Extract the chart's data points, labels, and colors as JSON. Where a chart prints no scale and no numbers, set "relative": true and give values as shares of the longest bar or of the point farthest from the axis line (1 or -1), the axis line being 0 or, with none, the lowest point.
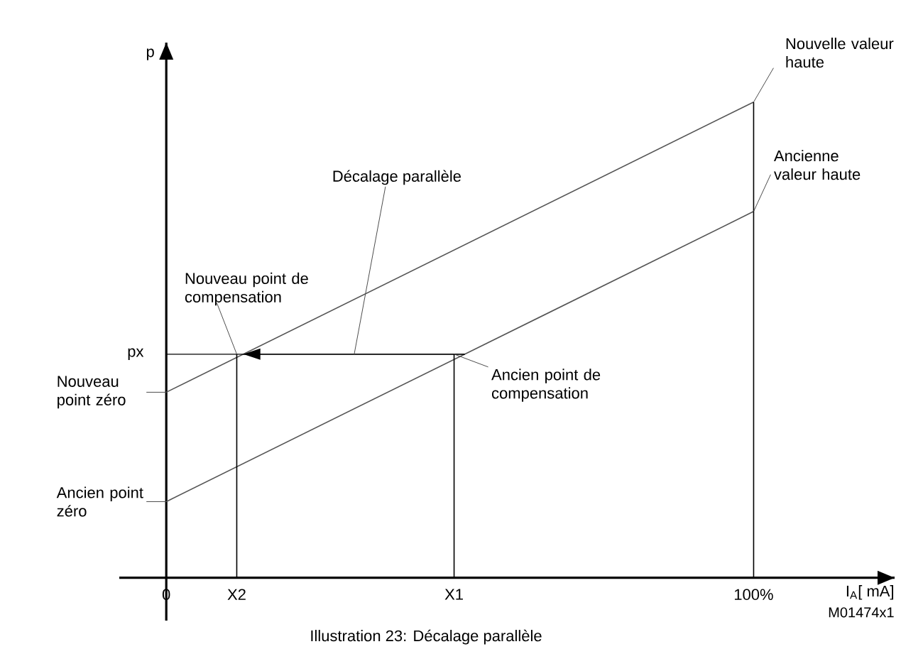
{
  "chart_data": {
    "type": "line",
    "relative": true,
    "x": [
      0,
      100
    ],
    "series": [
      {
        "color": "#555555",
        "values": [
          0.39,
          1.0
        ]
      },
      {
        "color": "#555555",
        "values": [
          0.16,
          0.77
        ]
      },
      {
        "color": "#000000",
        "x": [
          12,
          12
        ],
        "values": [
          0,
          0.47
        ]
      },
      {
        "color": "#000000",
        "x": [
          49,
          49
        ],
        "values": [
          0,
          0.47
        ]
      },
      {
        "color": "#000000",
        "x": [
          100,
          100
        ],
        "values": [
          0,
          1.0
        ]
      }
    ],
    "xlim": [
      -8,
      124
    ],
    "xticks": [
      0,
      {
        "value": 12,
        "label": "X2"
      },
      {
        "value": 49,
        "label": "X1"
      },
      {
        "value": 100,
        "label": "100%"
      }
    ],
    "xlabel": "I$_{A}$[ mA]",
    "ylabel": "p",
    "ref_lines": [
      {
        "axis": "y",
        "value": 0.47,
        "label": "px"
      }
    ],
    "annotations": [
      {
        "text": "Nouvelle valeur haute",
        "x": 100,
        "y": 1.0
      },
      {
        "text": "Ancienne valeur haute",
        "x": 100,
        "y": 0.77
      },
      {
        "text": "Nouveau point de compensation",
        "x": 12,
        "y": 0.47
      },
      {
        "text": "Ancien point de compensation",
        "x": 49,
        "y": 0.47
      },
      {
        "text": "Décalage parallèle",
        "x": 32,
        "y": 0.47
      },
      {
        "text": "Nouveau point zéro",
        "x": 0,
        "y": 0.39
      },
      {
        "text": "Ancien point zéro",
        "x": 0,
        "y": 0.16
      },
      "Illustration 23: Décalage parallèle",
      "M01474x1"
    ]
  }
}
